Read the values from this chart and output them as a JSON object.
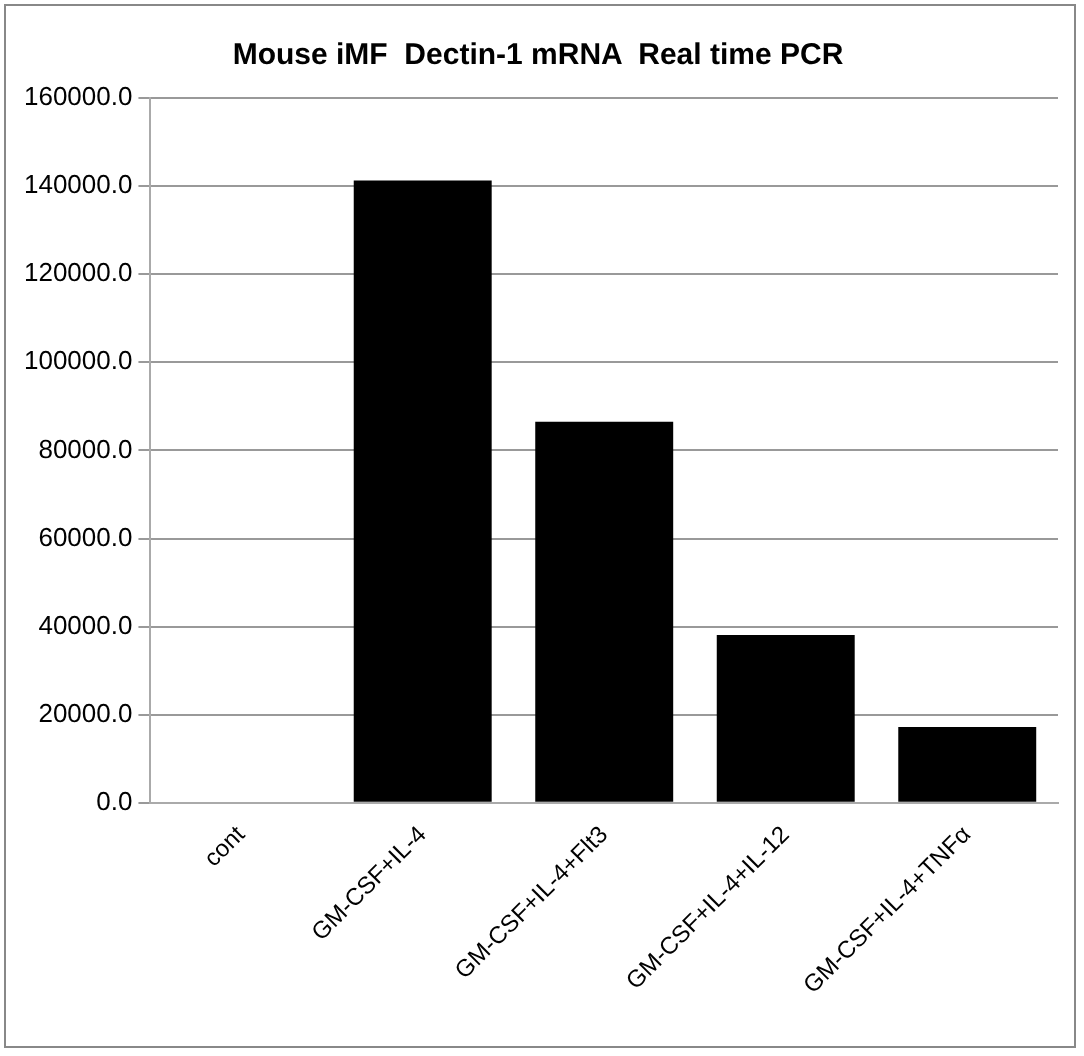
{
  "chart_data": {
    "type": "bar",
    "title": "Mouse iMF  Dectin-1 mRNA  Real time PCR",
    "categories": [
      "cont",
      "GM-CSF+IL-4",
      "GM-CSF+IL-4+Flt3",
      "GM-CSF+IL-4+IL-12",
      "GM-CSF+IL-4+TNFα"
    ],
    "values": [
      0,
      141300,
      86500,
      38100,
      17200
    ],
    "color": "#000000",
    "ylim": [
      0,
      160000
    ],
    "yticks": [
      {
        "value": 0,
        "label": "0.0"
      },
      {
        "value": 20000,
        "label": "20000.0"
      },
      {
        "value": 40000,
        "label": "40000.0"
      },
      {
        "value": 60000,
        "label": "60000.0"
      },
      {
        "value": 80000,
        "label": "80000.0"
      },
      {
        "value": 100000,
        "label": "100000.0"
      },
      {
        "value": 120000,
        "label": "120000.0"
      },
      {
        "value": 140000,
        "label": "140000.0"
      },
      {
        "value": 160000,
        "label": "160000.0"
      }
    ],
    "grid": "y",
    "legend": false
  }
}
